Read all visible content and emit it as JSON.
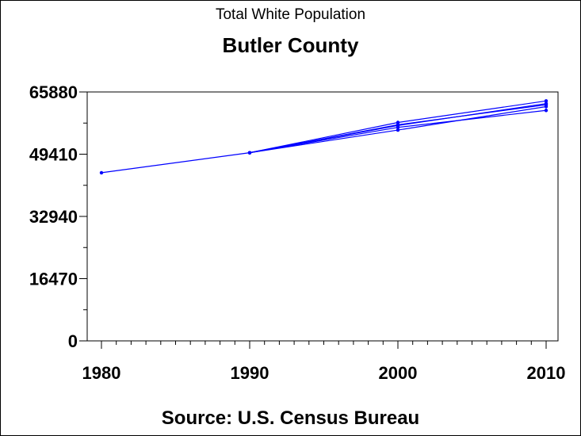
{
  "chart_data": {
    "type": "line",
    "title": "Butler County",
    "subtitle": "Total White Population",
    "source": "Source: U.S. Census Bureau",
    "xlabel": "",
    "ylabel": "",
    "xlim": [
      1980,
      2010
    ],
    "ylim": [
      0,
      65880
    ],
    "xticks": [
      "1980",
      "1990",
      "2000",
      "2010"
    ],
    "yticks": [
      "0",
      "16470",
      "32940",
      "49410",
      "65880"
    ],
    "grid": false,
    "series_color": "#0000ff",
    "series": [
      {
        "x": [
          1980,
          1990,
          2000,
          2010
        ],
        "values": [
          44500,
          49800,
          57200,
          62500
        ]
      },
      {
        "x": [
          1990,
          2000,
          2010
        ],
        "values": [
          49800,
          56500,
          61000
        ]
      },
      {
        "x": [
          1990,
          2000,
          2010
        ],
        "values": [
          49800,
          57800,
          63500
        ]
      },
      {
        "x": [
          1990,
          2000,
          2010
        ],
        "values": [
          49800,
          55800,
          62000
        ]
      },
      {
        "x": [
          1990,
          2000,
          2010
        ],
        "values": [
          49800,
          57000,
          62800
        ]
      }
    ]
  }
}
